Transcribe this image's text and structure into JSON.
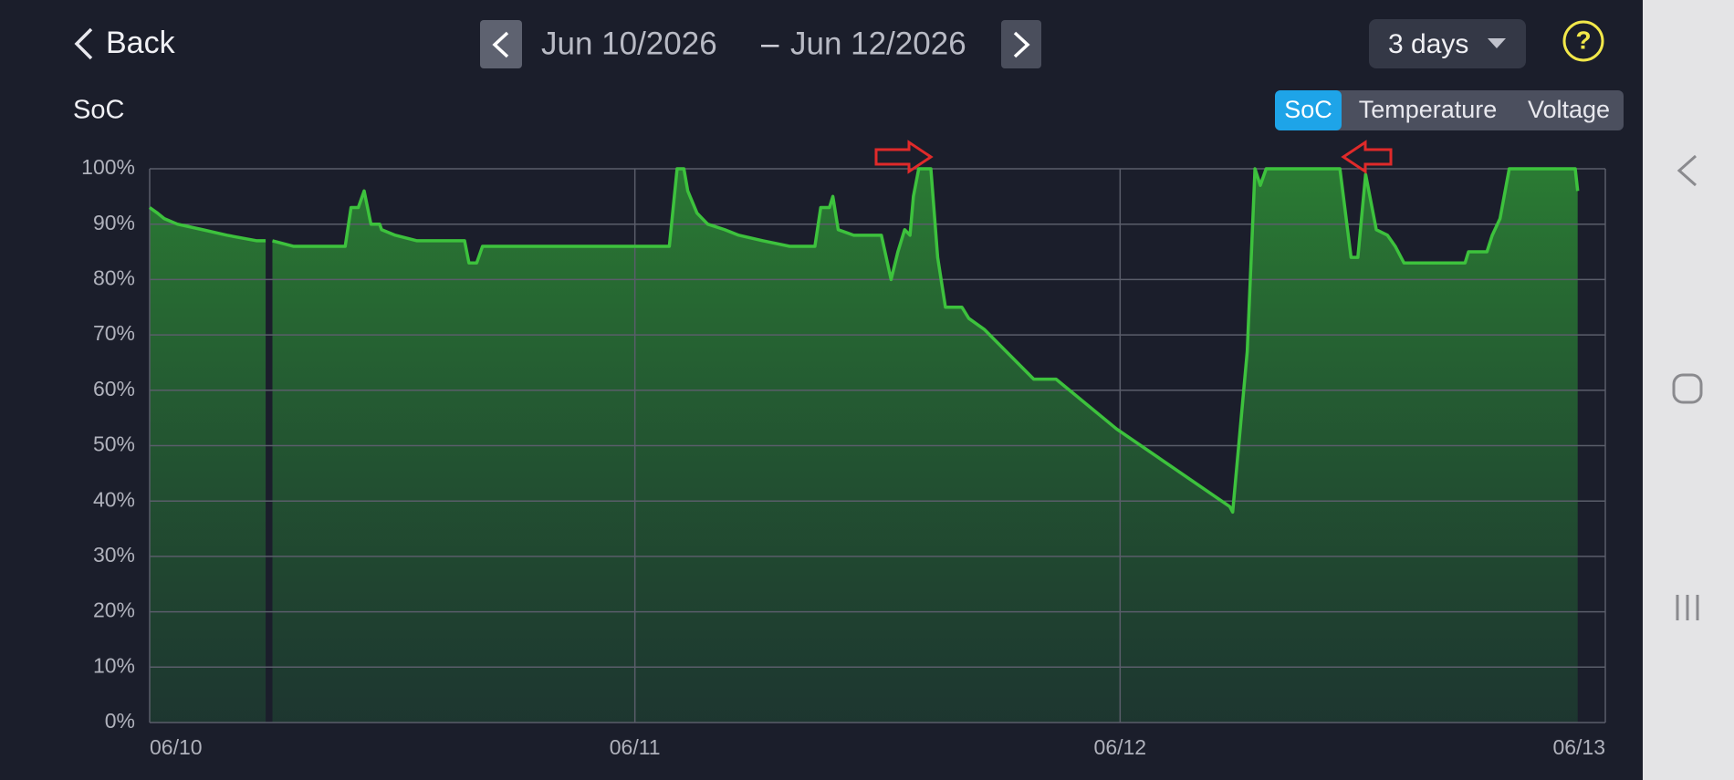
{
  "header": {
    "back": "Back",
    "start_date": "Jun 10/2026",
    "separator": "–",
    "end_date": "Jun 12/2026",
    "range": "3 days",
    "help": "?"
  },
  "tabs": [
    "SoC",
    "Temperature",
    "Voltage"
  ],
  "active_tab": 0,
  "chart_data": {
    "type": "area",
    "title": "SoC",
    "color": "#3dc23d",
    "x": [
      0,
      0.016,
      0.03,
      0.057,
      0.109,
      0.159,
      0.221,
      0.239,
      null,
      0.253,
      0.296,
      0.403,
      0.415,
      0.43,
      0.442,
      0.456,
      0.474,
      0.478,
      0.506,
      0.551,
      0.649,
      0.658,
      0.674,
      0.686,
      1.071,
      1.087,
      1.101,
      1.109,
      1.128,
      1.15,
      1.185,
      1.214,
      1.264,
      1.319,
      1.371,
      1.383,
      1.401,
      1.408,
      1.419,
      1.451,
      1.508,
      1.528,
      1.542,
      1.556,
      1.567,
      1.574,
      1.585,
      1.61,
      1.624,
      1.64,
      1.674,
      1.688,
      1.72,
      1.822,
      1.868,
      1.993,
      2.226,
      2.232,
      2.262,
      2.278,
      2.289,
      2.301,
      2.453,
      2.476,
      2.49,
      2.506,
      2.528,
      2.551,
      2.567,
      2.585,
      2.711,
      2.718,
      2.756,
      2.767,
      2.783,
      2.802,
      2.938,
      2.943
    ],
    "values": [
      93,
      92,
      91,
      90,
      89,
      88,
      87,
      87,
      null,
      87,
      86,
      86,
      93,
      93,
      96,
      90,
      90,
      89,
      88,
      87,
      87,
      83,
      83,
      86,
      86,
      100,
      100,
      96,
      92,
      90,
      89,
      88,
      87,
      86,
      86,
      93,
      93,
      95,
      89,
      88,
      88,
      80,
      85,
      89,
      88,
      95,
      100,
      100,
      84,
      75,
      75,
      73,
      71,
      62,
      62,
      53,
      39,
      38,
      67,
      100,
      97,
      100,
      100,
      84,
      84,
      99,
      89,
      88,
      86,
      83,
      83,
      85,
      85,
      88,
      91,
      100,
      100,
      96
    ],
    "xlim": [
      0,
      3
    ],
    "xticks": [
      {
        "value": 0,
        "label": "06/10"
      },
      {
        "value": 1,
        "label": "06/11"
      },
      {
        "value": 2,
        "label": "06/12"
      },
      {
        "value": 3,
        "label": "06/13"
      }
    ],
    "ylim": [
      0,
      100
    ],
    "yticks": [
      {
        "value": 0,
        "label": "0%"
      },
      {
        "value": 10,
        "label": "10%"
      },
      {
        "value": 20,
        "label": "20%"
      },
      {
        "value": 30,
        "label": "30%"
      },
      {
        "value": 40,
        "label": "40%"
      },
      {
        "value": 50,
        "label": "50%"
      },
      {
        "value": 60,
        "label": "60%"
      },
      {
        "value": 70,
        "label": "70%"
      },
      {
        "value": 80,
        "label": "80%"
      },
      {
        "value": 90,
        "label": "90%"
      },
      {
        "value": 100,
        "label": "100%"
      }
    ],
    "grid": true
  }
}
